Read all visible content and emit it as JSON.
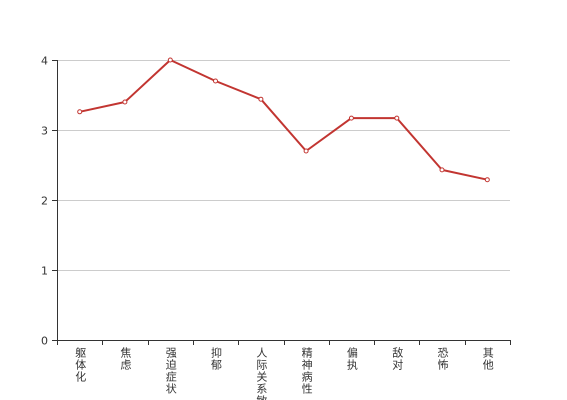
{
  "chart_data": {
    "type": "line",
    "title": "",
    "xlabel": "",
    "ylabel": "",
    "categories": [
      "躯体化",
      "焦虑",
      "强迫症状",
      "抑郁",
      "人际关系敏",
      "精神病性",
      "偏执",
      "敌对",
      "恐怖",
      "其他"
    ],
    "values": [
      3.26,
      3.4,
      4.0,
      3.7,
      3.44,
      2.7,
      3.17,
      3.17,
      2.43,
      2.29
    ],
    "ylim": [
      0,
      4
    ],
    "yticks": [
      "0",
      "1",
      "2",
      "3",
      "4"
    ],
    "grid": true,
    "legend": "none",
    "colors": {
      "line": "#c23531",
      "point_fill": "#ffffff",
      "grid": "#cccccc",
      "axis": "#333333"
    }
  }
}
